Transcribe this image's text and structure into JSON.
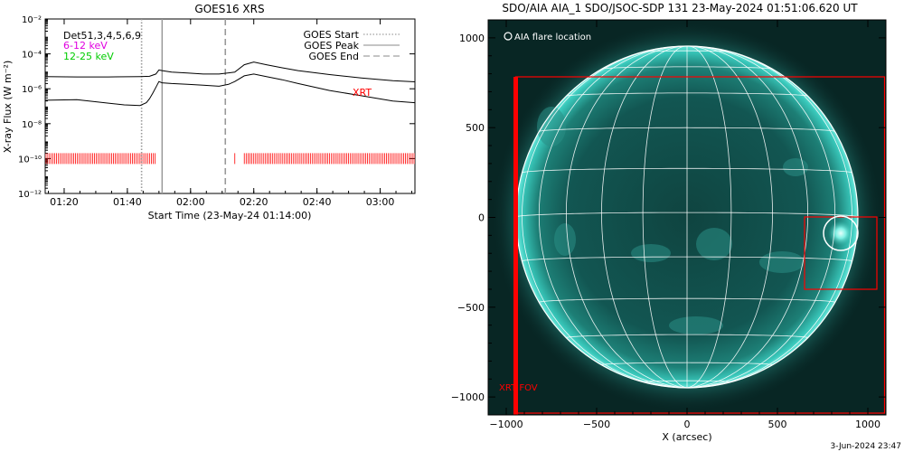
{
  "goes_panel": {
    "title": "GOES16 XRS",
    "xlabel": "Start Time (23-May-24 01:14:00)",
    "ylabel": "X-ray Flux (W m⁻²)",
    "det_label": "Det51,3,4,5,6,9",
    "channel_low": "6-12 keV",
    "channel_high": "12-25 keV",
    "xrt_label": "XRT",
    "legend": {
      "start": "GOES Start",
      "peak": "GOES Peak",
      "end": "GOES End"
    }
  },
  "aia_panel": {
    "title": "SDO/AIA AIA_1 SDO/JSOC-SDP 131 23-May-2024 01:51:06.620 UT",
    "xlabel": "X (arcsec)",
    "legend_label": "AIA flare location",
    "fov_label": "XRT FOV"
  },
  "footer": {
    "date": "3-Jun-2024 23:47"
  },
  "colors": {
    "xrt_red": "#ff0000",
    "sun_cyan": "#2fb3a6",
    "disk_dark": "#0c3b39",
    "channel_low": "#e000e0",
    "channel_high": "#00cc00"
  },
  "chart_data": [
    {
      "type": "line",
      "panel": "goes",
      "title": "GOES16 XRS",
      "xlabel": "Start Time (23-May-24 01:14:00)",
      "ylabel": "X-ray Flux (W m⁻²)",
      "y_scale": "log",
      "ylim": [
        1e-12,
        0.01
      ],
      "x_unit": "minutes after 01:14:00",
      "xlim": [
        0,
        117
      ],
      "x_ticks": [
        {
          "value": 6,
          "label": "01:20"
        },
        {
          "value": 26,
          "label": "01:40"
        },
        {
          "value": 46,
          "label": "02:00"
        },
        {
          "value": 66,
          "label": "02:20"
        },
        {
          "value": 86,
          "label": "02:40"
        },
        {
          "value": 106,
          "label": "03:00"
        }
      ],
      "y_ticks": [
        {
          "value": 0.01,
          "label": "10⁻²"
        },
        {
          "value": 0.0001,
          "label": "10⁻⁴"
        },
        {
          "value": 1e-06,
          "label": "10⁻⁶"
        },
        {
          "value": 1e-08,
          "label": "10⁻⁸"
        },
        {
          "value": 1e-10,
          "label": "10⁻¹⁰"
        },
        {
          "value": 1e-12,
          "label": "10⁻¹²"
        }
      ],
      "series": [
        {
          "x": [
            0,
            10,
            20,
            30,
            33,
            35,
            36,
            37,
            40,
            45,
            50,
            55,
            60,
            63,
            66,
            70,
            75,
            80,
            90,
            100,
            110,
            117
          ],
          "y": [
            5e-06,
            4.8e-06,
            4.8e-06,
            5e-06,
            5.2e-06,
            7e-06,
            1.2e-05,
            1.1e-05,
            9e-06,
            8e-06,
            7e-06,
            7e-06,
            9e-06,
            2.4e-05,
            3.4e-05,
            2.4e-05,
            1.6e-05,
            1.1e-05,
            6.5e-06,
            4.2e-06,
            2.9e-06,
            2.5e-06
          ]
        },
        {
          "x": [
            0,
            10,
            20,
            25,
            30,
            32,
            33,
            34,
            35,
            36,
            37,
            40,
            45,
            50,
            55,
            58,
            60,
            63,
            66,
            70,
            75,
            80,
            90,
            100,
            110,
            117
          ],
          "y": [
            2.2e-07,
            2.4e-07,
            1.5e-07,
            1.2e-07,
            1.1e-07,
            1.6e-07,
            2.7e-07,
            5.5e-07,
            1.2e-06,
            2.6e-06,
            2.2e-06,
            2e-06,
            1.8e-06,
            1.6e-06,
            1.4e-06,
            1.8e-06,
            2.6e-06,
            5.5e-06,
            7e-06,
            5e-06,
            3.3e-06,
            2e-06,
            8e-07,
            4e-07,
            2e-07,
            1.6e-07
          ]
        }
      ],
      "event_lines": [
        {
          "label": "GOES Start",
          "x": 30.5,
          "style": "dotted"
        },
        {
          "label": "GOES Peak",
          "x": 37,
          "style": "solid"
        },
        {
          "label": "GOES End",
          "x": 57,
          "style": "dashed"
        }
      ],
      "xrt_coverage": {
        "level": 1e-10,
        "intervals": [
          [
            0,
            35
          ],
          [
            60,
            60.5
          ],
          [
            63,
            117
          ]
        ]
      }
    },
    {
      "type": "image",
      "panel": "aia",
      "title": "SDO/AIA AIA_1 SDO/JSOC-SDP 131 23-May-2024 01:51:06.620 UT",
      "xlabel": "X (arcsec)",
      "unit": "arcsec",
      "xlim": [
        -1100,
        1100
      ],
      "ylim": [
        -1100,
        1100
      ],
      "x_ticks": [
        -1000,
        -500,
        0,
        500,
        1000
      ],
      "y_ticks": [
        -1000,
        -500,
        0,
        500,
        1000
      ],
      "solar_radius": 945,
      "xrt_fov": {
        "x": [
          -970,
          1100
        ],
        "y": [
          -1100,
          780
        ]
      },
      "xrt_flare_box": {
        "x": [
          650,
          1050
        ],
        "y": [
          -400,
          0
        ]
      },
      "flare_location": {
        "x": 850,
        "y": -90
      }
    }
  ]
}
